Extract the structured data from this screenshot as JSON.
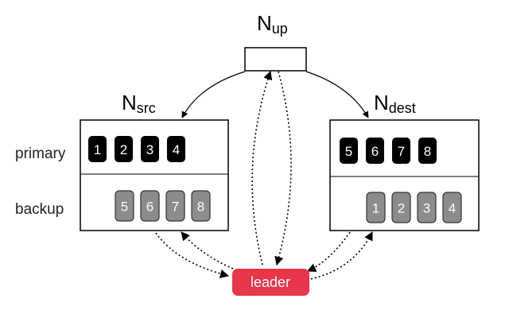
{
  "colors": {
    "primary_chip": "#000000",
    "backup_chip": "#8c8c8c",
    "leader": "#e8364a",
    "line": "#000000"
  },
  "nodes": {
    "up": {
      "base": "N",
      "sub": "up"
    },
    "src": {
      "base": "N",
      "sub": "src"
    },
    "dest": {
      "base": "N",
      "sub": "dest"
    }
  },
  "row_labels": {
    "primary": "primary",
    "backup": "backup"
  },
  "src": {
    "primary": [
      "1",
      "2",
      "3",
      "4"
    ],
    "backup": [
      "5",
      "6",
      "7",
      "8"
    ]
  },
  "dest": {
    "primary": [
      "5",
      "6",
      "7",
      "8"
    ],
    "backup": [
      "1",
      "2",
      "3",
      "4"
    ]
  },
  "leader": {
    "label": "leader"
  }
}
